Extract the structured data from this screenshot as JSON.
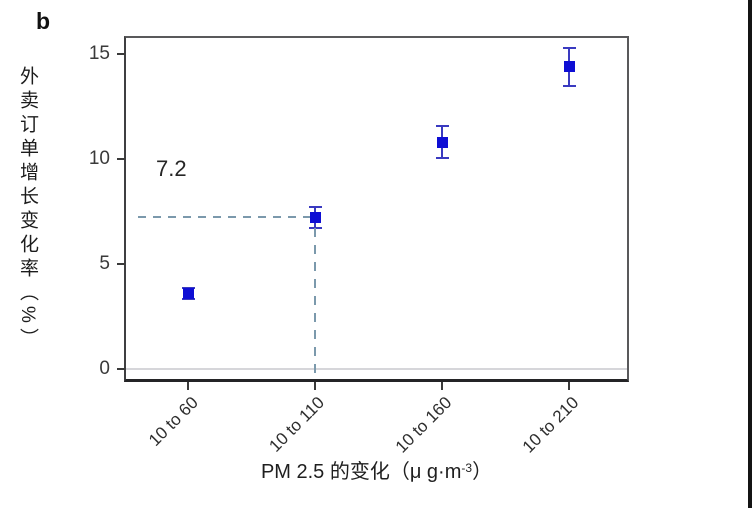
{
  "panel_label": "b",
  "chart_data": {
    "type": "scatter",
    "title": "",
    "categories": [
      "10 to 60",
      "10 to 110",
      "10 to 160",
      "10 to 210"
    ],
    "values": [
      3.6,
      7.2,
      10.8,
      14.4
    ],
    "errors_plus": [
      0.25,
      0.5,
      0.75,
      0.9
    ],
    "errors_minus": [
      0.25,
      0.5,
      0.75,
      0.9
    ],
    "xlabel": "PM 2.5 的变化（μ g·m⁻³）",
    "xlabel_parts": {
      "main": "PM 2.5 的变化（μ g·m",
      "sup": "-3",
      "close": "）"
    },
    "ylabel": "外卖订单增长变化率（%）",
    "yticks": [
      0,
      5,
      10,
      15
    ],
    "ylim": [
      -0.5,
      15.8
    ],
    "grid": "off",
    "zero_line": true,
    "marker": "square",
    "legend": "none",
    "annotation": {
      "text": "7.2",
      "category": "10 to 110",
      "category_index": 1,
      "value": 7.2,
      "style": "dashed-reference-lines"
    },
    "colors": {
      "marker": "#0e0ed4",
      "error_bar": "#3a3ac0",
      "dashed_line": "#7b99ac",
      "zero_line": "#d6d6da",
      "axis_frame": "#4a4a4c",
      "text": "#2e2e2e"
    }
  }
}
